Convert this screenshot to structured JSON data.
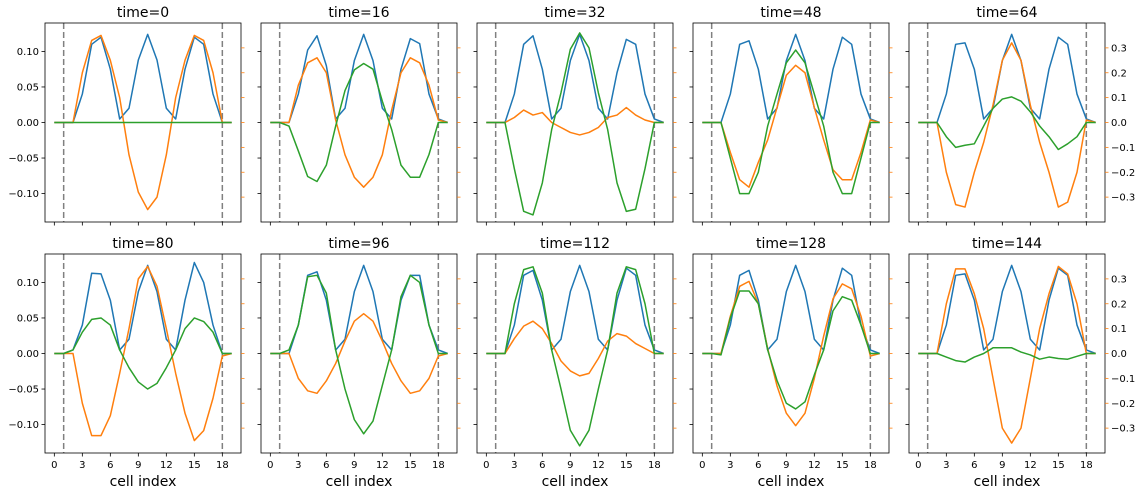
{
  "chart_data": {
    "type": "line",
    "layout": {
      "rows": 2,
      "cols": 5
    },
    "xlabel": "cell index",
    "x_ticks": [
      0,
      3,
      6,
      9,
      12,
      15,
      18
    ],
    "x_range": [
      -1,
      20
    ],
    "vlines": [
      1,
      18
    ],
    "left_y": {
      "range": [
        -0.14,
        0.14
      ],
      "ticks": [
        -0.1,
        -0.05,
        0.0,
        0.05,
        0.1
      ],
      "tick_labels": [
        "−0.10",
        "−0.05",
        "0.00",
        "0.05",
        "0.10"
      ],
      "color": "#1f77b4"
    },
    "right_y": {
      "range": [
        -0.4,
        0.4
      ],
      "ticks": [
        -0.3,
        -0.2,
        -0.1,
        0.0,
        0.1,
        0.2,
        0.3
      ],
      "tick_labels": [
        "−0.3",
        "−0.2",
        "−0.1",
        "0.0",
        "0.1",
        "0.2",
        "0.3"
      ],
      "color": "#ff7f0e"
    },
    "series_colors": {
      "blue": "#1f77b4",
      "orange": "#ff7f0e",
      "green": "#2ca02c"
    },
    "series_axes": {
      "blue": "left",
      "orange": "right",
      "green": "left"
    },
    "x": [
      0,
      1,
      2,
      3,
      4,
      5,
      6,
      7,
      8,
      9,
      10,
      11,
      12,
      13,
      14,
      15,
      16,
      17,
      18,
      19
    ],
    "panels": [
      {
        "title": "time=0",
        "blue": [
          0,
          0,
          0,
          0.04,
          0.11,
          0.12,
          0.075,
          0.005,
          0.02,
          0.088,
          0.124,
          0.088,
          0.02,
          0.005,
          0.075,
          0.12,
          0.11,
          0.04,
          0,
          0
        ],
        "orange": [
          0,
          0,
          0,
          0.2,
          0.33,
          0.35,
          0.25,
          0.1,
          -0.13,
          -0.28,
          -0.35,
          -0.3,
          -0.13,
          0.1,
          0.25,
          0.35,
          0.33,
          0.2,
          0,
          0
        ],
        "green": [
          0,
          0,
          0,
          0,
          0,
          0,
          0,
          0,
          0,
          0,
          0,
          0,
          0,
          0,
          0,
          0,
          0,
          0,
          0,
          0
        ]
      },
      {
        "title": "time=16",
        "blue": [
          0,
          0,
          0,
          0.04,
          0.102,
          0.122,
          0.08,
          0.005,
          0.02,
          0.087,
          0.124,
          0.087,
          0.02,
          0.005,
          0.075,
          0.118,
          0.111,
          0.04,
          0.005,
          0
        ],
        "orange": [
          0,
          0,
          0,
          0.15,
          0.24,
          0.26,
          0.2,
          0.01,
          -0.13,
          -0.22,
          -0.26,
          -0.22,
          -0.13,
          0.05,
          0.2,
          0.26,
          0.24,
          0.15,
          0.01,
          0
        ],
        "green": [
          0,
          0,
          -0.005,
          -0.04,
          -0.076,
          -0.083,
          -0.06,
          -0.005,
          0.045,
          0.074,
          0.083,
          0.075,
          0.03,
          -0.01,
          -0.06,
          -0.077,
          -0.077,
          -0.045,
          0,
          0
        ]
      },
      {
        "title": "time=32",
        "blue": [
          0,
          0,
          0,
          0.04,
          0.11,
          0.122,
          0.075,
          0.005,
          0.02,
          0.087,
          0.124,
          0.087,
          0.02,
          0.005,
          0.07,
          0.117,
          0.11,
          0.04,
          0.005,
          0
        ],
        "orange": [
          0,
          0,
          0,
          0.02,
          0.05,
          0.03,
          0.04,
          0.0,
          -0.02,
          -0.04,
          -0.05,
          -0.04,
          -0.02,
          0.02,
          0.03,
          0.06,
          0.03,
          0.01,
          0,
          0
        ],
        "green": [
          0,
          0,
          0,
          -0.065,
          -0.125,
          -0.13,
          -0.085,
          -0.01,
          0.042,
          0.103,
          0.126,
          0.105,
          0.042,
          -0.01,
          -0.085,
          -0.125,
          -0.122,
          -0.065,
          0,
          0
        ]
      },
      {
        "title": "time=48",
        "blue": [
          0,
          0,
          0,
          0.04,
          0.11,
          0.115,
          0.075,
          0.005,
          0.02,
          0.087,
          0.124,
          0.087,
          0.02,
          0.005,
          0.075,
          0.12,
          0.11,
          0.04,
          0.005,
          0
        ],
        "orange": [
          0,
          0,
          0,
          -0.12,
          -0.23,
          -0.26,
          -0.16,
          -0.07,
          0.06,
          0.19,
          0.23,
          0.2,
          0.06,
          -0.07,
          -0.19,
          -0.23,
          -0.23,
          -0.12,
          0.01,
          0
        ],
        "green": [
          0,
          0,
          0,
          -0.05,
          -0.1,
          -0.1,
          -0.07,
          -0.005,
          0.04,
          0.084,
          0.102,
          0.084,
          0.04,
          -0.005,
          -0.07,
          -0.1,
          -0.1,
          -0.05,
          0,
          0
        ]
      },
      {
        "title": "time=64",
        "blue": [
          0,
          0,
          0,
          0.04,
          0.11,
          0.112,
          0.075,
          0.005,
          0.02,
          0.087,
          0.124,
          0.087,
          0.02,
          0.005,
          0.075,
          0.12,
          0.11,
          0.04,
          0.005,
          0
        ],
        "orange": [
          0,
          0,
          0,
          -0.2,
          -0.33,
          -0.34,
          -0.2,
          -0.08,
          0.07,
          0.25,
          0.32,
          0.25,
          0.07,
          -0.08,
          -0.2,
          -0.34,
          -0.32,
          -0.2,
          0.01,
          0
        ],
        "green": [
          0,
          0,
          0,
          -0.02,
          -0.035,
          -0.032,
          -0.03,
          -0.005,
          0.02,
          0.033,
          0.036,
          0.03,
          0.015,
          -0.005,
          -0.02,
          -0.038,
          -0.03,
          -0.02,
          0,
          0
        ]
      },
      {
        "title": "time=80",
        "blue": [
          0,
          0,
          0.005,
          0.04,
          0.113,
          0.112,
          0.075,
          0.005,
          0.02,
          0.087,
          0.124,
          0.087,
          0.02,
          0.005,
          0.075,
          0.128,
          0.1,
          0.04,
          0.0,
          0
        ],
        "orange": [
          0,
          0,
          0,
          -0.2,
          -0.33,
          -0.33,
          -0.25,
          -0.08,
          0.1,
          0.3,
          0.35,
          0.27,
          0.1,
          -0.08,
          -0.24,
          -0.35,
          -0.31,
          -0.18,
          -0.01,
          0
        ],
        "green": [
          0,
          0,
          0.005,
          0.03,
          0.048,
          0.05,
          0.04,
          0.005,
          -0.02,
          -0.04,
          -0.05,
          -0.042,
          -0.02,
          0.005,
          0.035,
          0.05,
          0.045,
          0.03,
          0,
          0
        ]
      },
      {
        "title": "time=96",
        "blue": [
          0,
          0,
          0,
          0.04,
          0.11,
          0.115,
          0.075,
          0.005,
          0.02,
          0.087,
          0.124,
          0.087,
          0.02,
          0.005,
          0.075,
          0.11,
          0.11,
          0.04,
          0.005,
          0
        ],
        "orange": [
          0,
          0,
          0,
          -0.1,
          -0.15,
          -0.16,
          -0.11,
          -0.04,
          0.05,
          0.13,
          0.16,
          0.13,
          0.05,
          -0.04,
          -0.11,
          -0.16,
          -0.15,
          -0.1,
          -0.01,
          0
        ],
        "green": [
          0,
          0,
          0.005,
          0.04,
          0.108,
          0.11,
          0.085,
          0.005,
          -0.05,
          -0.093,
          -0.113,
          -0.095,
          -0.045,
          0.005,
          0.08,
          0.11,
          0.1,
          0.04,
          0,
          0
        ]
      },
      {
        "title": "time=112",
        "blue": [
          0,
          0,
          0,
          0.04,
          0.11,
          0.117,
          0.075,
          0.005,
          0.02,
          0.087,
          0.124,
          0.087,
          0.02,
          0.005,
          0.075,
          0.12,
          0.11,
          0.04,
          0.005,
          0
        ],
        "orange": [
          0,
          0,
          0,
          0.06,
          0.11,
          0.13,
          0.1,
          0.04,
          -0.03,
          -0.07,
          -0.09,
          -0.08,
          -0.02,
          0.05,
          0.08,
          0.07,
          0.04,
          0.02,
          0,
          0
        ],
        "green": [
          0,
          0,
          0,
          0.07,
          0.118,
          0.122,
          0.085,
          0.005,
          -0.05,
          -0.108,
          -0.13,
          -0.108,
          -0.05,
          0.005,
          0.085,
          0.122,
          0.118,
          0.07,
          0,
          0
        ]
      },
      {
        "title": "time=128",
        "blue": [
          0,
          0,
          0,
          0.04,
          0.11,
          0.117,
          0.075,
          0.005,
          0.02,
          0.087,
          0.124,
          0.087,
          0.02,
          0.005,
          0.075,
          0.12,
          0.11,
          0.04,
          0.005,
          0
        ],
        "orange": [
          0,
          0,
          0,
          0.15,
          0.27,
          0.29,
          0.2,
          0.02,
          -0.13,
          -0.24,
          -0.29,
          -0.24,
          -0.1,
          0.07,
          0.22,
          0.28,
          0.26,
          0.15,
          -0.01,
          0
        ],
        "green": [
          0,
          0,
          -0.002,
          0.05,
          0.088,
          0.088,
          0.07,
          0.005,
          -0.038,
          -0.07,
          -0.078,
          -0.068,
          -0.03,
          0.005,
          0.06,
          0.08,
          0.075,
          0.04,
          0,
          0
        ]
      },
      {
        "title": "time=144",
        "blue": [
          0,
          0,
          0,
          0.04,
          0.11,
          0.112,
          0.075,
          0.005,
          0.02,
          0.087,
          0.124,
          0.087,
          0.02,
          0.005,
          0.075,
          0.12,
          0.11,
          0.04,
          0.005,
          0
        ],
        "orange": [
          0,
          0,
          0,
          0.2,
          0.34,
          0.34,
          0.24,
          0.1,
          -0.1,
          -0.3,
          -0.36,
          -0.3,
          -0.1,
          0.1,
          0.24,
          0.35,
          0.32,
          0.2,
          0.0,
          0
        ],
        "green": [
          0,
          0,
          0,
          -0.005,
          -0.01,
          -0.012,
          -0.005,
          0.0,
          0.008,
          0.008,
          0.008,
          0.002,
          -0.002,
          -0.008,
          -0.005,
          -0.007,
          -0.008,
          -0.004,
          0,
          0
        ]
      }
    ]
  }
}
